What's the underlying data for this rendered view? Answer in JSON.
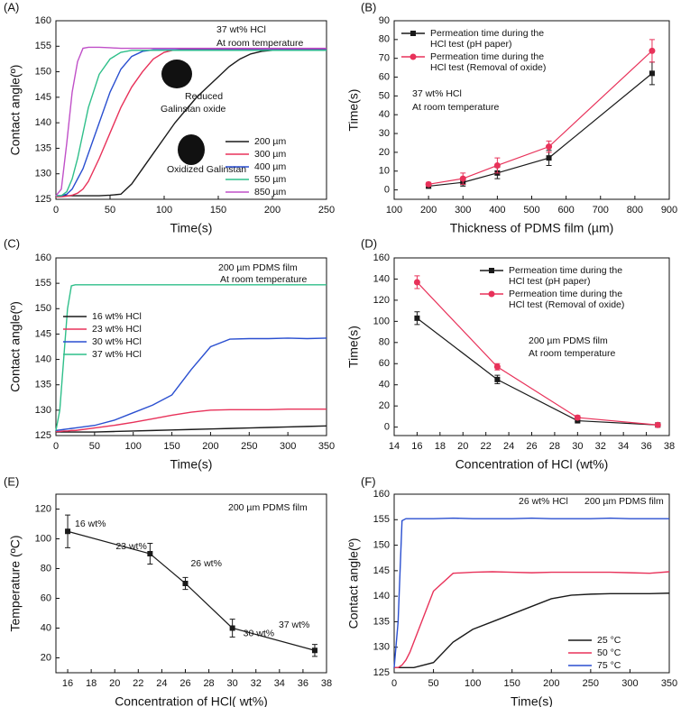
{
  "chart_data": [
    {
      "type": "line",
      "label": "(A)",
      "xlabel": "Time(s)",
      "ylabel": "Contact angle(º)",
      "xlim": [
        0,
        250
      ],
      "xticks": [
        0,
        50,
        100,
        150,
        200,
        250
      ],
      "ylim": [
        125,
        160
      ],
      "yticks": [
        125,
        130,
        135,
        140,
        145,
        150,
        155,
        160
      ],
      "legend": "lower right",
      "annotations": [
        "37 wt% HCl",
        "At room temperature",
        "Reduced",
        "Galinstan oxide",
        "Oxidized Galinstan"
      ],
      "x": [
        0,
        5,
        10,
        15,
        20,
        25,
        30,
        40,
        50,
        60,
        70,
        80,
        90,
        100,
        110,
        120,
        130,
        140,
        150,
        160,
        170,
        180,
        190,
        200,
        210,
        220,
        230,
        240,
        250
      ],
      "series": [
        {
          "name": "200 µm",
          "color": "#1a1a1a",
          "values": [
            125.7,
            125.7,
            125.7,
            125.7,
            125.7,
            125.7,
            125.7,
            125.7,
            125.8,
            126,
            128,
            131,
            134,
            137,
            140,
            142.5,
            145,
            147,
            149,
            151,
            152.5,
            153.5,
            154,
            154.2,
            154.3,
            154.3,
            154.3,
            154.3,
            154.3
          ]
        },
        {
          "name": "300 µm",
          "color": "#e8325a",
          "values": [
            125.5,
            125.5,
            125.6,
            125.8,
            126.2,
            127,
            128.5,
            133,
            138,
            143,
            147,
            150,
            152.5,
            153.8,
            154.3,
            154.5,
            154.5,
            154.5,
            154.5,
            154.5,
            154.5,
            154.5,
            154.5,
            154.5,
            154.5,
            154.5,
            154.5,
            154.5,
            154.5
          ]
        },
        {
          "name": "400 µm",
          "color": "#2a4fd0",
          "values": [
            125.7,
            125.7,
            126,
            127,
            129,
            131,
            134,
            140,
            146,
            150.5,
            153,
            154,
            154.3,
            154.3,
            154.3,
            154.3,
            154.3,
            154.3,
            154.3,
            154.3,
            154.3,
            154.3,
            154.3,
            154.3,
            154.3,
            154.3,
            154.3,
            154.3,
            154.3
          ]
        },
        {
          "name": "550 µm",
          "color": "#2fbf8a",
          "values": [
            125.7,
            125.7,
            126.5,
            129,
            133,
            138,
            143,
            149.5,
            152.5,
            153.8,
            154.2,
            154.2,
            154.2,
            154.2,
            154.2,
            154.2,
            154.2,
            154.2,
            154.2,
            154.2,
            154.2,
            154.2,
            154.2,
            154.2,
            154.2,
            154.2,
            154.2,
            154.2,
            154.2
          ]
        },
        {
          "name": "850 µm",
          "color": "#c050c8",
          "values": [
            125.7,
            127,
            136,
            146,
            152,
            154.6,
            154.8,
            154.8,
            154.7,
            154.6,
            154.6,
            154.6,
            154.6,
            154.6,
            154.6,
            154.6,
            154.6,
            154.6,
            154.6,
            154.6,
            154.6,
            154.6,
            154.6,
            154.6,
            154.6,
            154.6,
            154.6,
            154.6,
            154.6
          ]
        }
      ]
    },
    {
      "type": "line",
      "label": "(B)",
      "xlabel": "Thickness of PDMS film (µm)",
      "ylabel": "Time(s)",
      "xlim": [
        100,
        900
      ],
      "xticks": [
        100,
        200,
        300,
        400,
        500,
        600,
        700,
        800,
        900
      ],
      "ylim": [
        -5,
        90
      ],
      "yticks": [
        0,
        10,
        20,
        30,
        40,
        50,
        60,
        70,
        80,
        90
      ],
      "legend": "upper left",
      "annotations": [
        "37 wt% HCl",
        "At room temperature"
      ],
      "x": [
        200,
        300,
        400,
        550,
        850
      ],
      "series": [
        {
          "name": "Permeation time during the\nHCl test (pH paper)",
          "color": "#1a1a1a",
          "marker": "square",
          "values": [
            2,
            4,
            9,
            17,
            62
          ],
          "errors": [
            1,
            2,
            3,
            4,
            6
          ]
        },
        {
          "name": "Permeation time during the\nHCl test (Removal of oxide)",
          "color": "#e8325a",
          "marker": "circle",
          "values": [
            3,
            6,
            13,
            23,
            74
          ],
          "errors": [
            1,
            3,
            4,
            3,
            6
          ]
        }
      ]
    },
    {
      "type": "line",
      "label": "(C)",
      "xlabel": "Time(s)",
      "ylabel": "Contact angle(º)",
      "xlim": [
        0,
        350
      ],
      "xticks": [
        0,
        50,
        100,
        150,
        200,
        250,
        300,
        350
      ],
      "ylim": [
        125,
        160
      ],
      "yticks": [
        125,
        130,
        135,
        140,
        145,
        150,
        155,
        160
      ],
      "legend": "center left",
      "annotations": [
        "200 µm PDMS film",
        "At room temperature"
      ],
      "x": [
        0,
        5,
        10,
        15,
        20,
        25,
        50,
        75,
        100,
        125,
        150,
        175,
        200,
        225,
        250,
        275,
        300,
        325,
        350
      ],
      "series": [
        {
          "name": "16 wt% HCl",
          "color": "#1a1a1a",
          "values": [
            125.7,
            125.7,
            125.7,
            125.7,
            125.7,
            125.7,
            125.7,
            125.8,
            125.9,
            126,
            126.1,
            126.2,
            126.3,
            126.4,
            126.5,
            126.6,
            126.7,
            126.8,
            126.9
          ]
        },
        {
          "name": "23 wt% HCl",
          "color": "#e8325a",
          "values": [
            125.8,
            125.8,
            125.9,
            125.9,
            126,
            126,
            126.5,
            127,
            127.6,
            128.3,
            129,
            129.6,
            130,
            130.1,
            130.1,
            130.1,
            130.2,
            130.2,
            130.2
          ]
        },
        {
          "name": "30 wt% HCl",
          "color": "#2a4fd0",
          "values": [
            126,
            126.1,
            126.2,
            126.3,
            126.4,
            126.5,
            127,
            128,
            129.5,
            131,
            133,
            138,
            142.5,
            144,
            144.1,
            144.1,
            144.2,
            144.1,
            144.2
          ]
        },
        {
          "name": "37 wt% HCl",
          "color": "#2fbf8a",
          "values": [
            126,
            130,
            140,
            150,
            154.5,
            154.7,
            154.7,
            154.7,
            154.7,
            154.7,
            154.7,
            154.7,
            154.7,
            154.7,
            154.7,
            154.7,
            154.7,
            154.7,
            154.7
          ]
        }
      ]
    },
    {
      "type": "line",
      "label": "(D)",
      "xlabel": "Concentration of HCl (wt%)",
      "ylabel": "Time(s)",
      "xlim": [
        14,
        38
      ],
      "xticks": [
        14,
        16,
        18,
        20,
        22,
        24,
        26,
        28,
        30,
        32,
        34,
        36,
        38
      ],
      "ylim": [
        -8,
        160
      ],
      "yticks": [
        0,
        20,
        40,
        60,
        80,
        100,
        120,
        140,
        160
      ],
      "legend": "upper right",
      "annotations": [
        "200 µm PDMS film",
        "At room temperature"
      ],
      "x": [
        16,
        23,
        30,
        37
      ],
      "series": [
        {
          "name": "Permeation time during the\nHCl test (pH paper)",
          "color": "#1a1a1a",
          "marker": "square",
          "values": [
            103,
            45,
            6,
            2
          ],
          "errors": [
            6,
            4,
            1,
            1
          ]
        },
        {
          "name": "Permeation time during the\nHCl test (Removal of oxide)",
          "color": "#e8325a",
          "marker": "circle",
          "values": [
            137,
            57,
            9,
            2
          ],
          "errors": [
            6,
            3,
            2,
            1
          ]
        }
      ]
    },
    {
      "type": "line",
      "label": "(E)",
      "xlabel": "Concentration of HCl( wt%)",
      "ylabel": "Temperature (ºC)",
      "xlim": [
        15,
        38
      ],
      "xticks": [
        16,
        18,
        20,
        22,
        24,
        26,
        28,
        30,
        32,
        34,
        36,
        38
      ],
      "ylim": [
        10,
        130
      ],
      "yticks": [
        20,
        40,
        60,
        80,
        100,
        120
      ],
      "annotations": [
        "200 µm PDMS film"
      ],
      "x": [
        16,
        23,
        26,
        30,
        37
      ],
      "series": [
        {
          "color": "#1a1a1a",
          "marker": "square",
          "values": [
            105,
            90,
            70,
            40,
            25
          ],
          "errors": [
            11,
            7,
            4,
            6,
            4
          ],
          "point_labels": [
            "16 wt%",
            "23 wt%",
            "26 wt%",
            "30 wt%",
            "37 wt%"
          ]
        }
      ]
    },
    {
      "type": "line",
      "label": "(F)",
      "xlabel": "Time(s)",
      "ylabel": "Contact angle(º)",
      "xlim": [
        0,
        350
      ],
      "xticks": [
        0,
        50,
        100,
        150,
        200,
        250,
        300,
        350
      ],
      "ylim": [
        125,
        160
      ],
      "yticks": [
        125,
        130,
        135,
        140,
        145,
        150,
        155,
        160
      ],
      "legend": "lower right",
      "annotations": [
        "26 wt% HCl",
        "200 µm PDMS film"
      ],
      "x": [
        0,
        5,
        10,
        15,
        20,
        25,
        50,
        75,
        100,
        125,
        150,
        175,
        200,
        225,
        250,
        275,
        300,
        325,
        350
      ],
      "series": [
        {
          "name": "25 °C",
          "color": "#1a1a1a",
          "values": [
            126,
            126,
            126,
            126,
            126,
            126,
            127,
            131,
            133.5,
            135,
            136.5,
            138,
            139.5,
            140.2,
            140.4,
            140.5,
            140.5,
            140.5,
            140.6
          ]
        },
        {
          "name": "50 °C",
          "color": "#e8325a",
          "values": [
            126,
            126,
            126.5,
            127.5,
            129,
            131,
            141,
            144.5,
            144.7,
            144.8,
            144.7,
            144.6,
            144.7,
            144.7,
            144.7,
            144.7,
            144.6,
            144.5,
            144.8
          ]
        },
        {
          "name": "75 °C",
          "color": "#2a4fd0",
          "values": [
            126,
            135,
            154.8,
            155.2,
            155.2,
            155.2,
            155.2,
            155.3,
            155.2,
            155.2,
            155.2,
            155.3,
            155.2,
            155.2,
            155.2,
            155.3,
            155.2,
            155.2,
            155.2
          ]
        }
      ]
    }
  ]
}
